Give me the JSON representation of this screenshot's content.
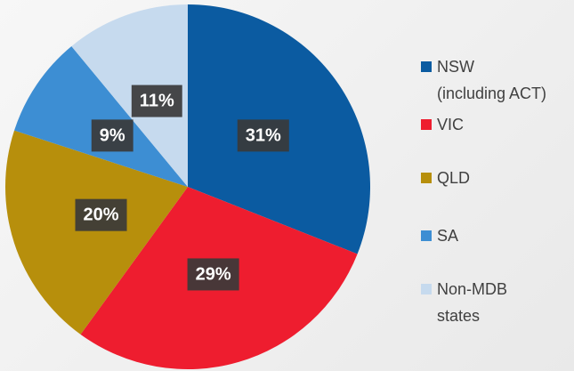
{
  "chart_data": {
    "type": "pie",
    "categories": [
      "NSW\n(including ACT)",
      "VIC",
      "QLD",
      "SA",
      "Non-MDB\nstates"
    ],
    "values": [
      31,
      29,
      20,
      9,
      11
    ],
    "value_labels": [
      "31%",
      "29%",
      "20%",
      "9%",
      "11%"
    ],
    "colors": [
      "#0b5ba1",
      "#ee1d2f",
      "#b78f0c",
      "#3d8ed3",
      "#c6daee"
    ],
    "legend": "right"
  }
}
